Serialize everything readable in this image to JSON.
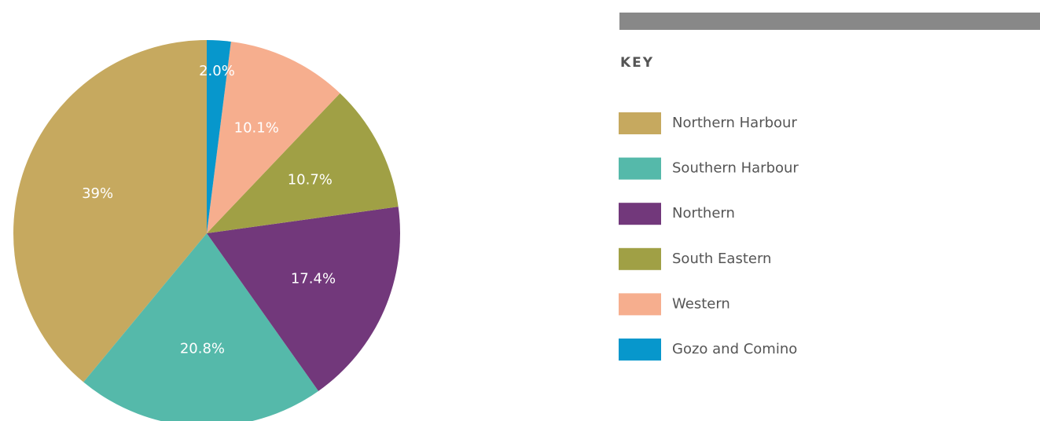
{
  "chart_data": {
    "type": "pie",
    "legend_title": "KEY",
    "categories": [
      "Northern Harbour",
      "Southern Harbour",
      "Northern",
      "South Eastern",
      "Western",
      "Gozo and Comino"
    ],
    "values": [
      39,
      20.8,
      17.4,
      10.7,
      10.1,
      2.0
    ],
    "value_labels": [
      "39%",
      "20.8%",
      "17.4%",
      "10.7%",
      "10.1%",
      "2.0%"
    ],
    "colors": [
      "#c6a95f",
      "#55b9aa",
      "#72387b",
      "#a0a045",
      "#f6ae8e",
      "#0797cc"
    ]
  }
}
